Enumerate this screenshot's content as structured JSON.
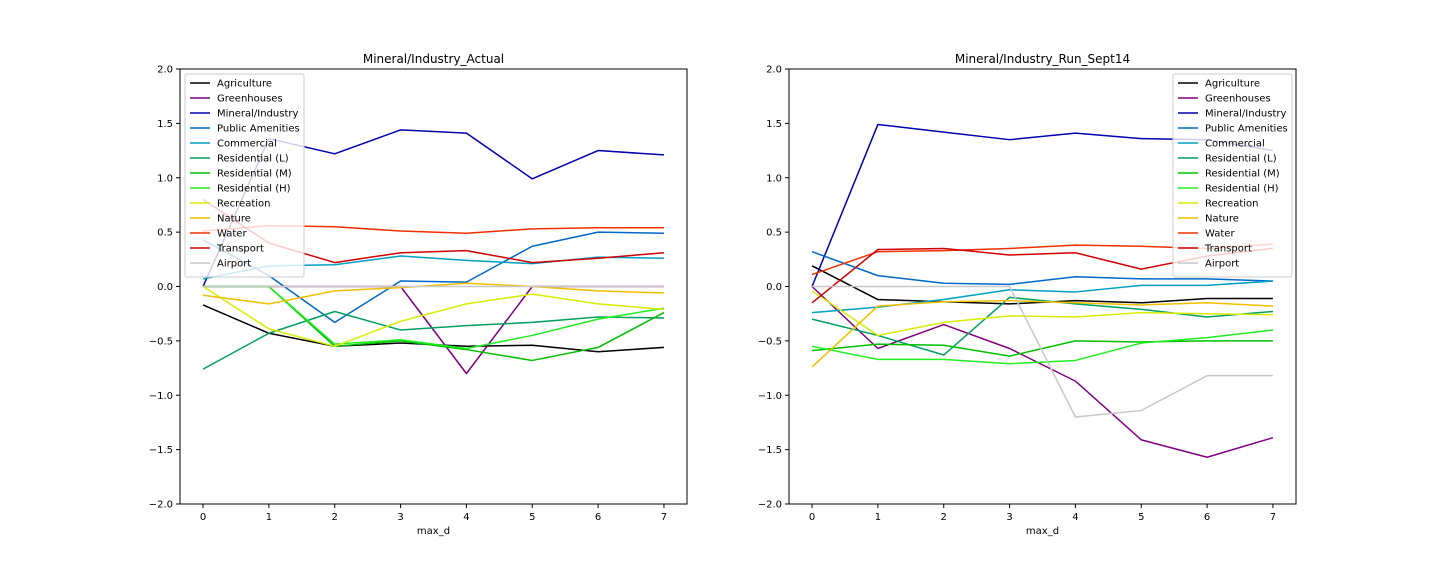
{
  "chart_data": [
    {
      "type": "line",
      "title": "Mineral/Industry_Actual",
      "xlabel": "max_d",
      "ylabel": "",
      "x": [
        0,
        1,
        2,
        3,
        4,
        5,
        6,
        7
      ],
      "xlim": [
        -0.35,
        7.35
      ],
      "ylim": [
        -2.0,
        2.0
      ],
      "xticks": [
        "0",
        "1",
        "2",
        "3",
        "4",
        "5",
        "6",
        "7"
      ],
      "yticks": [
        "2.0",
        "1.5",
        "1.0",
        "0.5",
        "0.0",
        "−0.5",
        "−1.0",
        "−1.5",
        "−2.0"
      ],
      "legend": "top-left",
      "grid": false,
      "series": [
        {
          "name": "Agriculture",
          "color": "#000000",
          "values": [
            -0.17,
            -0.43,
            -0.55,
            -0.52,
            -0.55,
            -0.54,
            -0.6,
            -0.56
          ]
        },
        {
          "name": "Greenhouses",
          "color": "#800080",
          "values": [
            0.0,
            0.0,
            0.0,
            0.0,
            -0.8,
            0.0,
            0.0,
            0.0
          ]
        },
        {
          "name": "Mineral/Industry",
          "color": "#0000b0",
          "values": [
            0.0,
            1.36,
            1.22,
            1.44,
            1.41,
            0.99,
            1.25,
            1.21
          ]
        },
        {
          "name": "Public Amenities",
          "color": "#0068c8",
          "values": [
            0.43,
            0.1,
            -0.33,
            0.05,
            0.04,
            0.37,
            0.5,
            0.49
          ]
        },
        {
          "name": "Commercial",
          "color": "#00a0c0",
          "values": [
            0.07,
            0.19,
            0.2,
            0.28,
            0.24,
            0.21,
            0.27,
            0.26
          ]
        },
        {
          "name": "Residential (L)",
          "color": "#00a060",
          "values": [
            -0.76,
            -0.43,
            -0.23,
            -0.4,
            -0.36,
            -0.33,
            -0.28,
            -0.29
          ]
        },
        {
          "name": "Residential (M)",
          "color": "#00c000",
          "values": [
            0.0,
            0.0,
            -0.55,
            -0.5,
            -0.58,
            -0.68,
            -0.56,
            -0.24
          ]
        },
        {
          "name": "Residential (H)",
          "color": "#20ee20",
          "values": [
            0.0,
            0.0,
            -0.53,
            -0.49,
            -0.57,
            -0.45,
            -0.3,
            -0.2
          ]
        },
        {
          "name": "Recreation",
          "color": "#d8ec00",
          "values": [
            0.0,
            -0.39,
            -0.55,
            -0.32,
            -0.16,
            -0.07,
            -0.16,
            -0.21
          ]
        },
        {
          "name": "Nature",
          "color": "#f0c000",
          "values": [
            -0.08,
            -0.16,
            -0.04,
            -0.01,
            0.03,
            0.0,
            -0.04,
            -0.06
          ]
        },
        {
          "name": "Water",
          "color": "#f03000",
          "values": [
            0.51,
            0.56,
            0.55,
            0.51,
            0.49,
            0.53,
            0.54,
            0.54
          ]
        },
        {
          "name": "Transport",
          "color": "#d00000",
          "values": [
            0.8,
            0.4,
            0.22,
            0.31,
            0.33,
            0.22,
            0.26,
            0.31
          ]
        },
        {
          "name": "Airport",
          "color": "#c8c8c8",
          "values": [
            0.0,
            0.0,
            0.0,
            0.0,
            0.0,
            0.0,
            0.0,
            0.0
          ]
        }
      ]
    },
    {
      "type": "line",
      "title": "Mineral/Industry_Run_Sept14",
      "xlabel": "max_d",
      "ylabel": "",
      "x": [
        0,
        1,
        2,
        3,
        4,
        5,
        6,
        7
      ],
      "xlim": [
        -0.35,
        7.35
      ],
      "ylim": [
        -2.0,
        2.0
      ],
      "xticks": [
        "0",
        "1",
        "2",
        "3",
        "4",
        "5",
        "6",
        "7"
      ],
      "yticks": [
        "2.0",
        "1.5",
        "1.0",
        "0.5",
        "0.0",
        "−0.5",
        "−1.0",
        "−1.5",
        "−2.0"
      ],
      "legend": "top-right",
      "grid": false,
      "series": [
        {
          "name": "Agriculture",
          "color": "#000000",
          "values": [
            0.19,
            -0.12,
            -0.14,
            -0.16,
            -0.13,
            -0.15,
            -0.11,
            -0.11
          ]
        },
        {
          "name": "Greenhouses",
          "color": "#800080",
          "values": [
            0.0,
            -0.57,
            -0.35,
            -0.57,
            -0.87,
            -1.41,
            -1.57,
            -1.39
          ]
        },
        {
          "name": "Mineral/Industry",
          "color": "#0000b0",
          "values": [
            0.0,
            1.49,
            1.42,
            1.35,
            1.41,
            1.36,
            1.35,
            1.25
          ]
        },
        {
          "name": "Public Amenities",
          "color": "#0068c8",
          "values": [
            0.32,
            0.1,
            0.03,
            0.02,
            0.09,
            0.07,
            0.07,
            0.05
          ]
        },
        {
          "name": "Commercial",
          "color": "#00a0c0",
          "values": [
            -0.24,
            -0.19,
            -0.12,
            -0.03,
            -0.05,
            0.01,
            0.01,
            0.05
          ]
        },
        {
          "name": "Residential (L)",
          "color": "#00a060",
          "values": [
            -0.3,
            -0.45,
            -0.63,
            -0.1,
            -0.16,
            -0.21,
            -0.28,
            -0.23
          ]
        },
        {
          "name": "Residential (M)",
          "color": "#00c000",
          "values": [
            -0.59,
            -0.53,
            -0.54,
            -0.64,
            -0.5,
            -0.51,
            -0.5,
            -0.5
          ]
        },
        {
          "name": "Residential (H)",
          "color": "#20ee20",
          "values": [
            -0.55,
            -0.67,
            -0.67,
            -0.71,
            -0.68,
            -0.52,
            -0.47,
            -0.4
          ]
        },
        {
          "name": "Recreation",
          "color": "#d8ec00",
          "values": [
            -0.04,
            -0.45,
            -0.33,
            -0.27,
            -0.28,
            -0.24,
            -0.25,
            -0.26
          ]
        },
        {
          "name": "Nature",
          "color": "#f0c000",
          "values": [
            -0.74,
            -0.18,
            -0.14,
            -0.13,
            -0.15,
            -0.17,
            -0.15,
            -0.18
          ]
        },
        {
          "name": "Water",
          "color": "#f03000",
          "values": [
            0.11,
            0.32,
            0.33,
            0.35,
            0.38,
            0.37,
            0.35,
            0.39
          ]
        },
        {
          "name": "Transport",
          "color": "#d00000",
          "values": [
            -0.15,
            0.34,
            0.35,
            0.29,
            0.31,
            0.16,
            0.28,
            0.35
          ]
        },
        {
          "name": "Airport",
          "color": "#c8c8c8",
          "values": [
            0.0,
            0.0,
            0.0,
            0.0,
            -1.2,
            -1.14,
            -0.82,
            -0.82
          ]
        }
      ]
    }
  ]
}
